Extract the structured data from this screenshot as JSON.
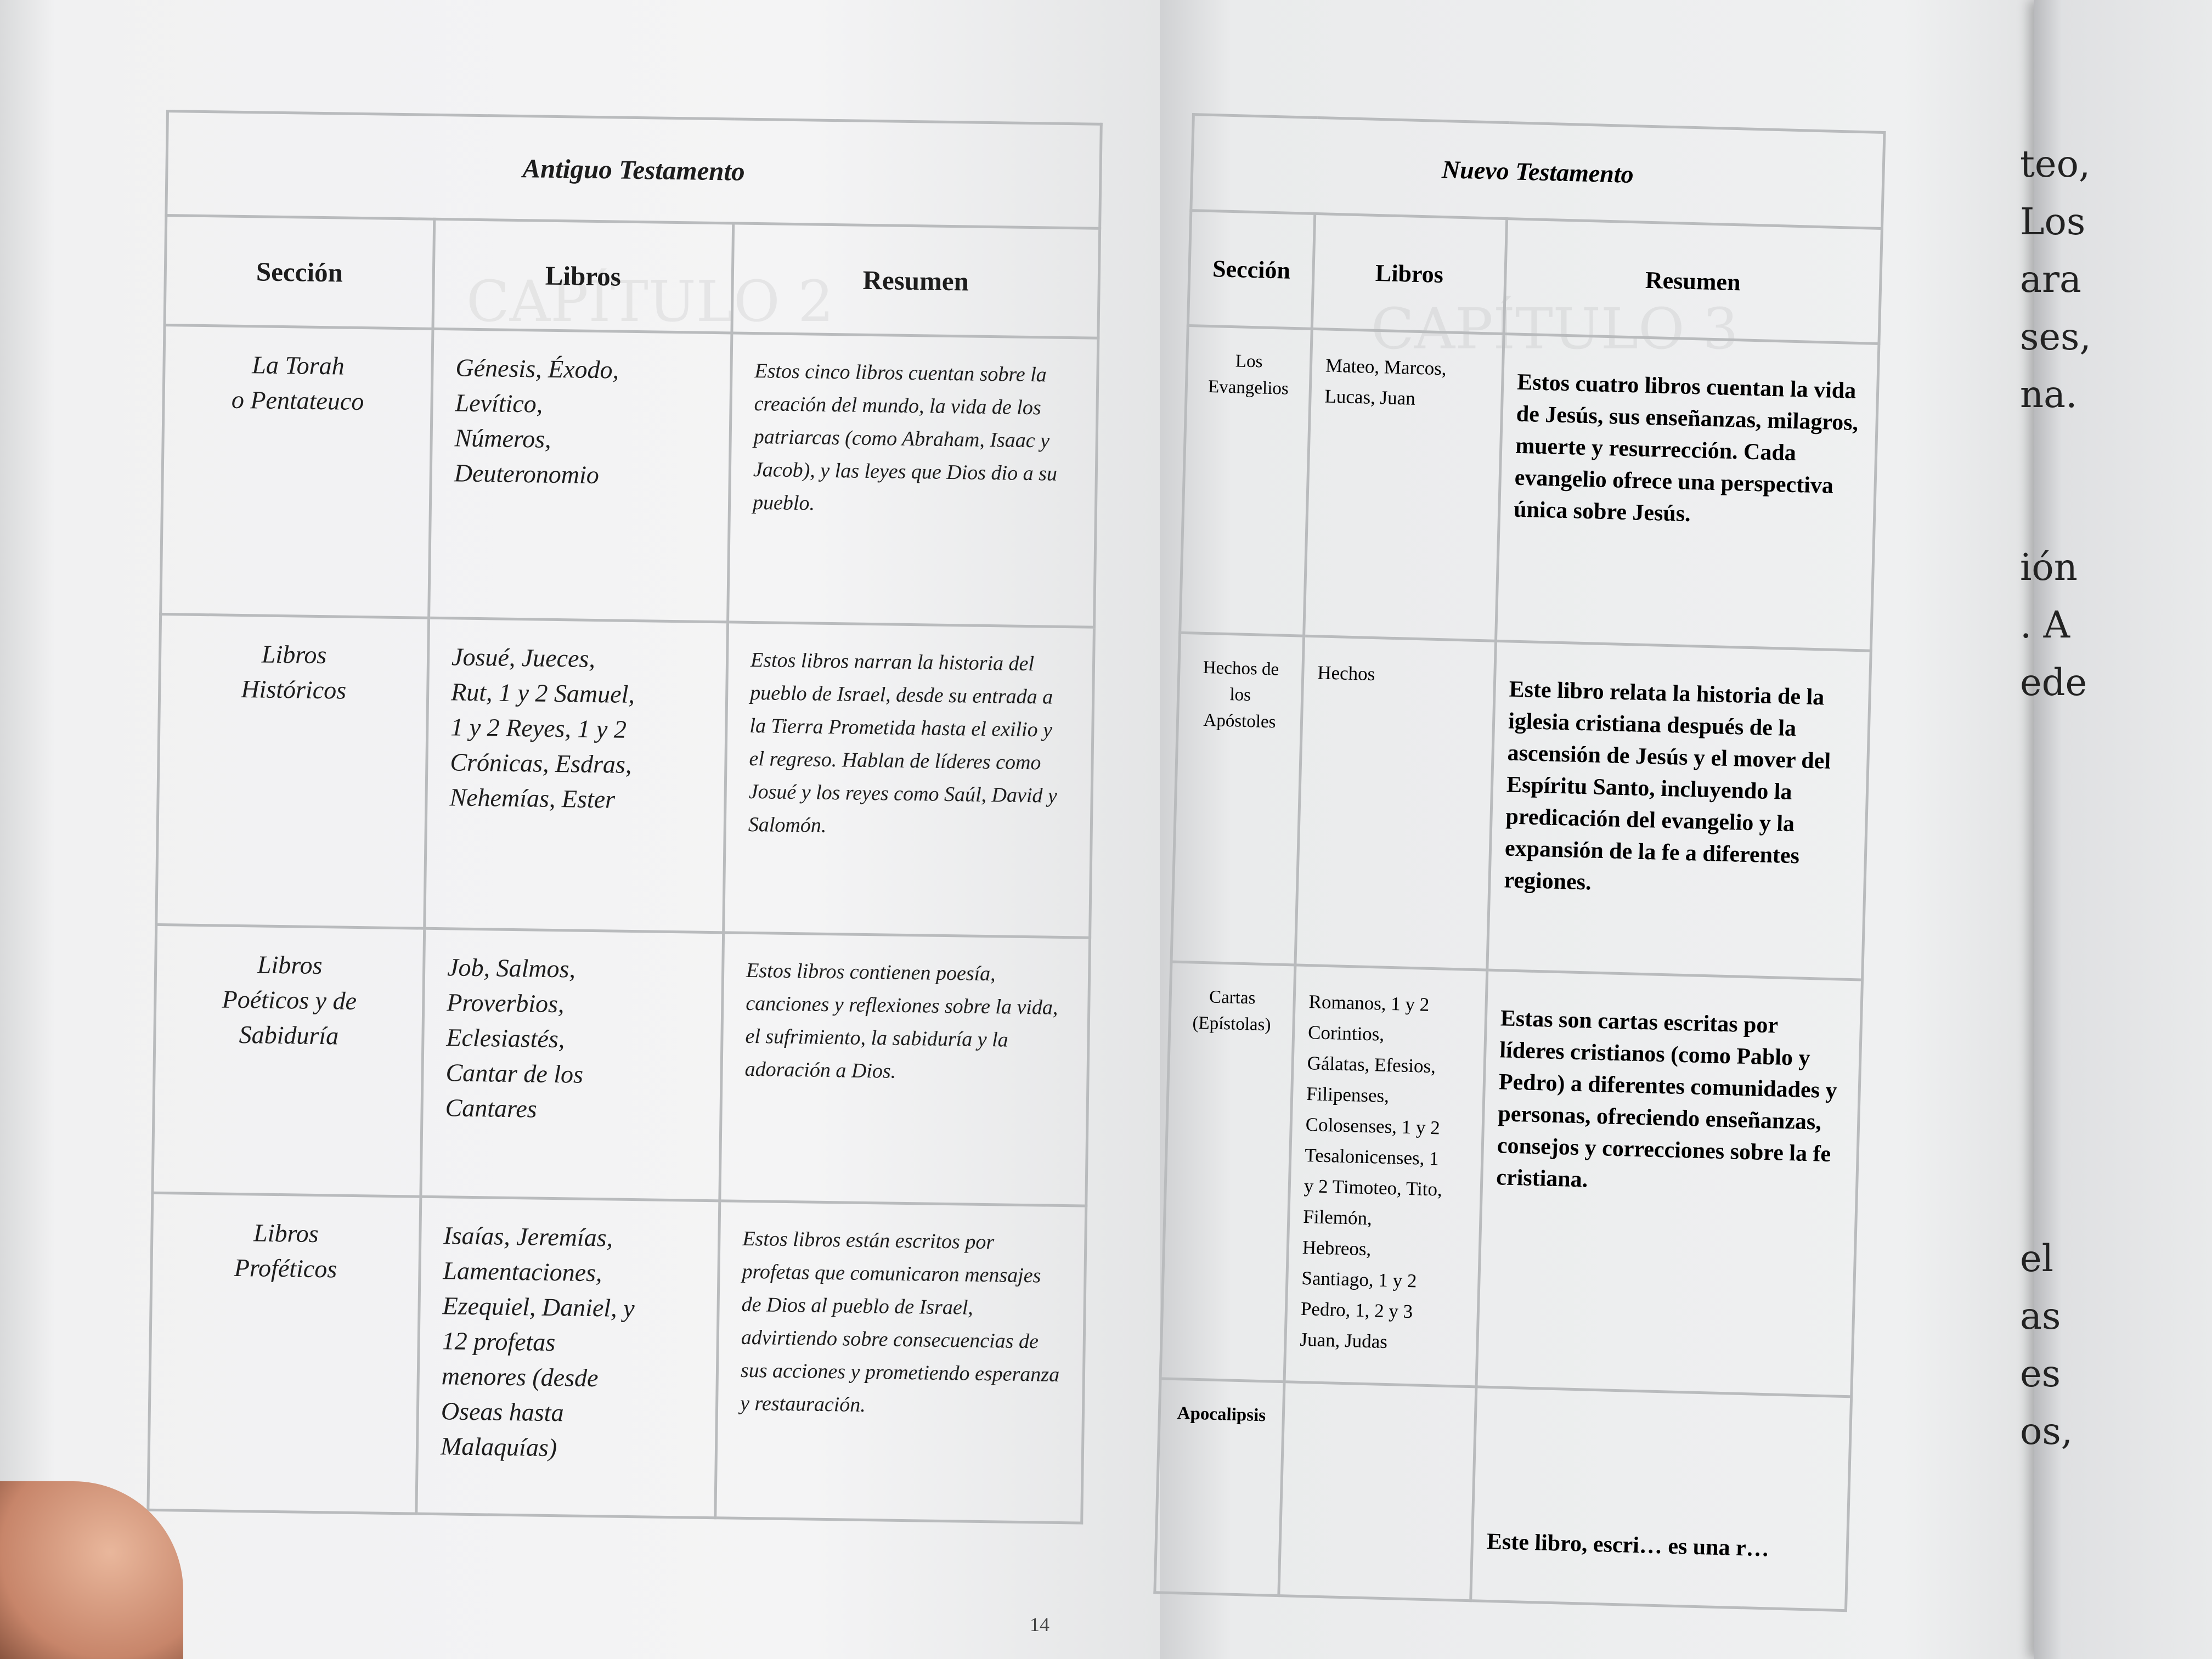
{
  "left_page": {
    "table_title": "Antiguo Testamento",
    "headers": [
      "Sección",
      "Libros",
      "Resumen"
    ],
    "rows": [
      {
        "section": "La Torah\no Pentateuco",
        "books": "Génesis, Éxodo,\nLevítico,\nNúmeros,\nDeuteronomio",
        "summary": "Estos cinco libros cuentan sobre la creación del mundo, la vida de los patriarcas (como Abraham, Isaac y Jacob), y las leyes que Dios dio a su pueblo."
      },
      {
        "section": "Libros\nHistóricos",
        "books": "Josué, Jueces,\nRut, 1 y 2 Samuel,\n1 y 2 Reyes, 1 y 2\nCrónicas, Esdras,\nNehemías, Ester",
        "summary": "Estos libros narran la historia del pueblo de Israel, desde su entrada a la Tierra Prometida hasta el exilio y el regreso. Hablan de líderes como Josué y los reyes como Saúl, David y Salomón."
      },
      {
        "section": "Libros\nPoéticos y de\nSabiduría",
        "books": "Job, Salmos,\nProverbios,\nEclesiastés,\nCantar de los\nCantares",
        "summary": "Estos libros contienen poesía, canciones y reflexiones sobre la vida, el sufrimiento, la sabiduría y la adoración a Dios."
      },
      {
        "section": "Libros\nProféticos",
        "books": "Isaías, Jeremías,\nLamentaciones,\nEzequiel, Daniel, y\n12 profetas\nmenores (desde\nOseas hasta\nMalaquías)",
        "summary": "Estos libros están escritos por profetas que comunicaron mensajes de Dios al pueblo de Israel, advirtiendo sobre consecuencias de sus acciones y prometiendo esperanza y restauración."
      }
    ],
    "page_number": "14"
  },
  "right_page": {
    "table_title": "Nuevo Testamento",
    "headers": [
      "Sección",
      "Libros",
      "Resumen"
    ],
    "rows": [
      {
        "section": "Los Evangelios",
        "books": "Mateo, Marcos,\nLucas, Juan",
        "summary": "Estos cuatro libros cuentan la vida de Jesús, sus enseñanzas, milagros, muerte y resurrección. Cada evangelio ofrece una perspectiva única sobre Jesús."
      },
      {
        "section": "Hechos de los\nApóstoles",
        "books": "Hechos",
        "summary": "Este libro relata la historia de la iglesia cristiana después de la ascensión de Jesús y el mover del Espíritu Santo, incluyendo la predicación del evangelio y la expansión de la fe a diferentes regiones."
      },
      {
        "section": "Cartas\n(Epístolas)",
        "books": "Romanos, 1 y 2\nCorintios,\nGálatas, Efesios,\nFilipenses,\nColosenses, 1 y 2\nTesalonicenses, 1\ny 2 Timoteo, Tito,\nFilemón,\nHebreos,\nSantiago, 1 y 2\nPedro, 1, 2 y 3\nJuan, Judas",
        "summary": "Estas son cartas escritas por líderes cristianos (como Pablo y Pedro) a diferentes comunidades y personas, ofreciendo enseñanzas, consejos y correcciones sobre la fe cristiana."
      },
      {
        "section": "Apocalipsis",
        "books": "",
        "summary": "Este libro, escri… es una r…"
      }
    ]
  },
  "next_page": {
    "fragments": [
      "teo,",
      "Los",
      "ara",
      "ses,",
      "na.",
      "",
      "",
      "ión",
      ". A",
      "ede",
      "",
      "",
      "",
      "",
      "",
      "",
      "",
      "",
      "",
      "el",
      "as",
      "es",
      "os,"
    ]
  }
}
